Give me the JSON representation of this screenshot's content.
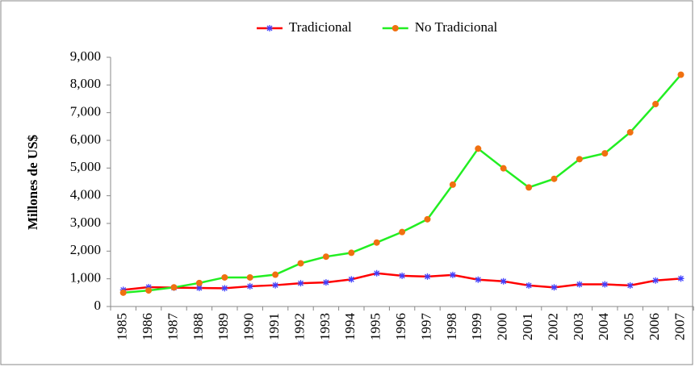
{
  "chart_data": {
    "type": "line",
    "y_label": "Millones de US$",
    "categories": [
      "1985",
      "1986",
      "1987",
      "1988",
      "1989",
      "1990",
      "1991",
      "1992",
      "1993",
      "1994",
      "1995",
      "1996",
      "1997",
      "1998",
      "1999",
      "2000",
      "2001",
      "2002",
      "2003",
      "2004",
      "2005",
      "2006",
      "2007"
    ],
    "series": [
      {
        "name": "Tradicional",
        "color": "#ff0000",
        "marker": "asterisk",
        "marker_color": "#4040ff",
        "values": [
          600,
          700,
          680,
          670,
          660,
          730,
          770,
          840,
          870,
          980,
          1200,
          1110,
          1080,
          1140,
          970,
          910,
          760,
          690,
          800,
          800,
          760,
          940,
          1010
        ]
      },
      {
        "name": "No Tradicional",
        "color": "#22ee22",
        "marker": "circle",
        "marker_color": "#f07010",
        "values": [
          500,
          580,
          690,
          850,
          1050,
          1050,
          1150,
          1560,
          1800,
          1940,
          2310,
          2690,
          3150,
          4400,
          5700,
          4990,
          4300,
          4610,
          5320,
          5530,
          6290,
          7310,
          8370
        ]
      }
    ],
    "ylim": [
      0,
      9000
    ],
    "yticks": [
      0,
      {
        "value": 1000,
        "label": "1,000"
      },
      {
        "value": 2000,
        "label": "2,000"
      },
      {
        "value": 3000,
        "label": "3,000"
      },
      {
        "value": 4000,
        "label": "4,000"
      },
      {
        "value": 5000,
        "label": "5,000"
      },
      {
        "value": 6000,
        "label": "6,000"
      },
      {
        "value": 7000,
        "label": "7,000"
      },
      {
        "value": 8000,
        "label": "8,000"
      },
      {
        "value": 9000,
        "label": "9,000"
      }
    ],
    "legend": "top"
  }
}
